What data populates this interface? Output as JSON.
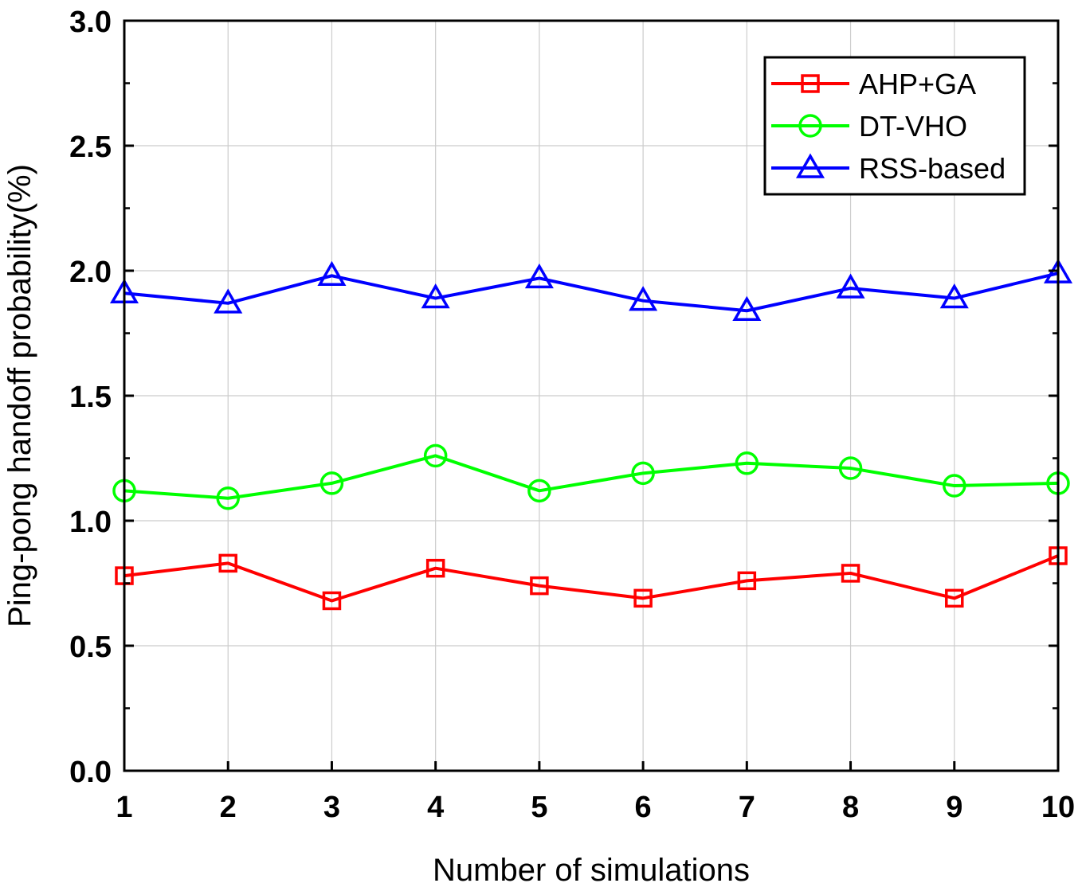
{
  "chart_data": {
    "type": "line",
    "title": "",
    "xlabel": "Number of simulations",
    "ylabel": "Ping-pong handoff probability(%)",
    "x": [
      1,
      2,
      3,
      4,
      5,
      6,
      7,
      8,
      9,
      10
    ],
    "xlim": [
      1,
      10
    ],
    "ylim": [
      0,
      3
    ],
    "x_ticks": [
      "1",
      "2",
      "3",
      "4",
      "5",
      "6",
      "7",
      "8",
      "9",
      "10"
    ],
    "y_ticks": [
      "0.0",
      "0.5",
      "1.0",
      "1.5",
      "2.0",
      "2.5",
      "3.0"
    ],
    "grid": true,
    "legend_position": "top-right",
    "series": [
      {
        "name": "AHP+GA",
        "color": "#ff0000",
        "marker": "square",
        "values": [
          0.78,
          0.83,
          0.68,
          0.81,
          0.74,
          0.69,
          0.76,
          0.79,
          0.69,
          0.86
        ]
      },
      {
        "name": "DT-VHO",
        "color": "#00ff00",
        "marker": "circle",
        "values": [
          1.12,
          1.09,
          1.15,
          1.26,
          1.12,
          1.19,
          1.23,
          1.21,
          1.14,
          1.15
        ]
      },
      {
        "name": "RSS-based",
        "color": "#0000ff",
        "marker": "triangle",
        "values": [
          1.91,
          1.87,
          1.98,
          1.89,
          1.97,
          1.88,
          1.84,
          1.93,
          1.89,
          1.99
        ]
      }
    ]
  }
}
